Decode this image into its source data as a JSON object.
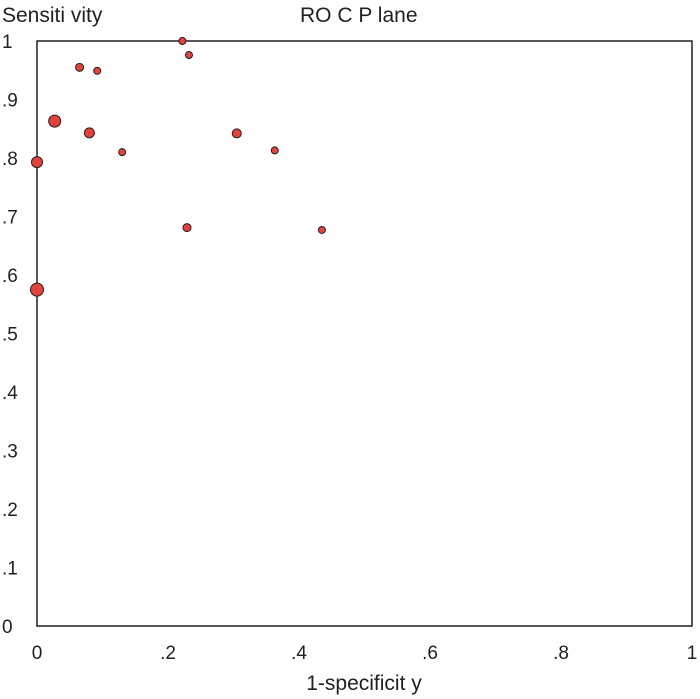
{
  "chart_data": {
    "type": "scatter",
    "title": "RO C P lane",
    "ylabel": "Sensiti vity",
    "xlabel": "1-specificit y",
    "xlim": [
      0,
      1
    ],
    "ylim": [
      0,
      1
    ],
    "x_ticks": [
      "0",
      ".2",
      ".4",
      ".6",
      ".8",
      "1"
    ],
    "y_ticks": [
      "0",
      ".1",
      ".2",
      ".3",
      ".4",
      ".5",
      ".6",
      ".7",
      ".8",
      ".9",
      "1"
    ],
    "grid": false,
    "marker_color": "#e8413a",
    "points": [
      {
        "x": 0.0,
        "y": 0.575,
        "size": 6.5
      },
      {
        "x": 0.0,
        "y": 0.793,
        "size": 5.5
      },
      {
        "x": 0.027,
        "y": 0.863,
        "size": 6
      },
      {
        "x": 0.065,
        "y": 0.955,
        "size": 4
      },
      {
        "x": 0.092,
        "y": 0.949,
        "size": 3.5
      },
      {
        "x": 0.08,
        "y": 0.843,
        "size": 5
      },
      {
        "x": 0.13,
        "y": 0.81,
        "size": 3.5
      },
      {
        "x": 0.222,
        "y": 1.0,
        "size": 3.5
      },
      {
        "x": 0.232,
        "y": 0.976,
        "size": 3.5
      },
      {
        "x": 0.305,
        "y": 0.842,
        "size": 4.5
      },
      {
        "x": 0.363,
        "y": 0.813,
        "size": 3.5
      },
      {
        "x": 0.229,
        "y": 0.681,
        "size": 4
      },
      {
        "x": 0.435,
        "y": 0.677,
        "size": 3.5
      }
    ]
  }
}
